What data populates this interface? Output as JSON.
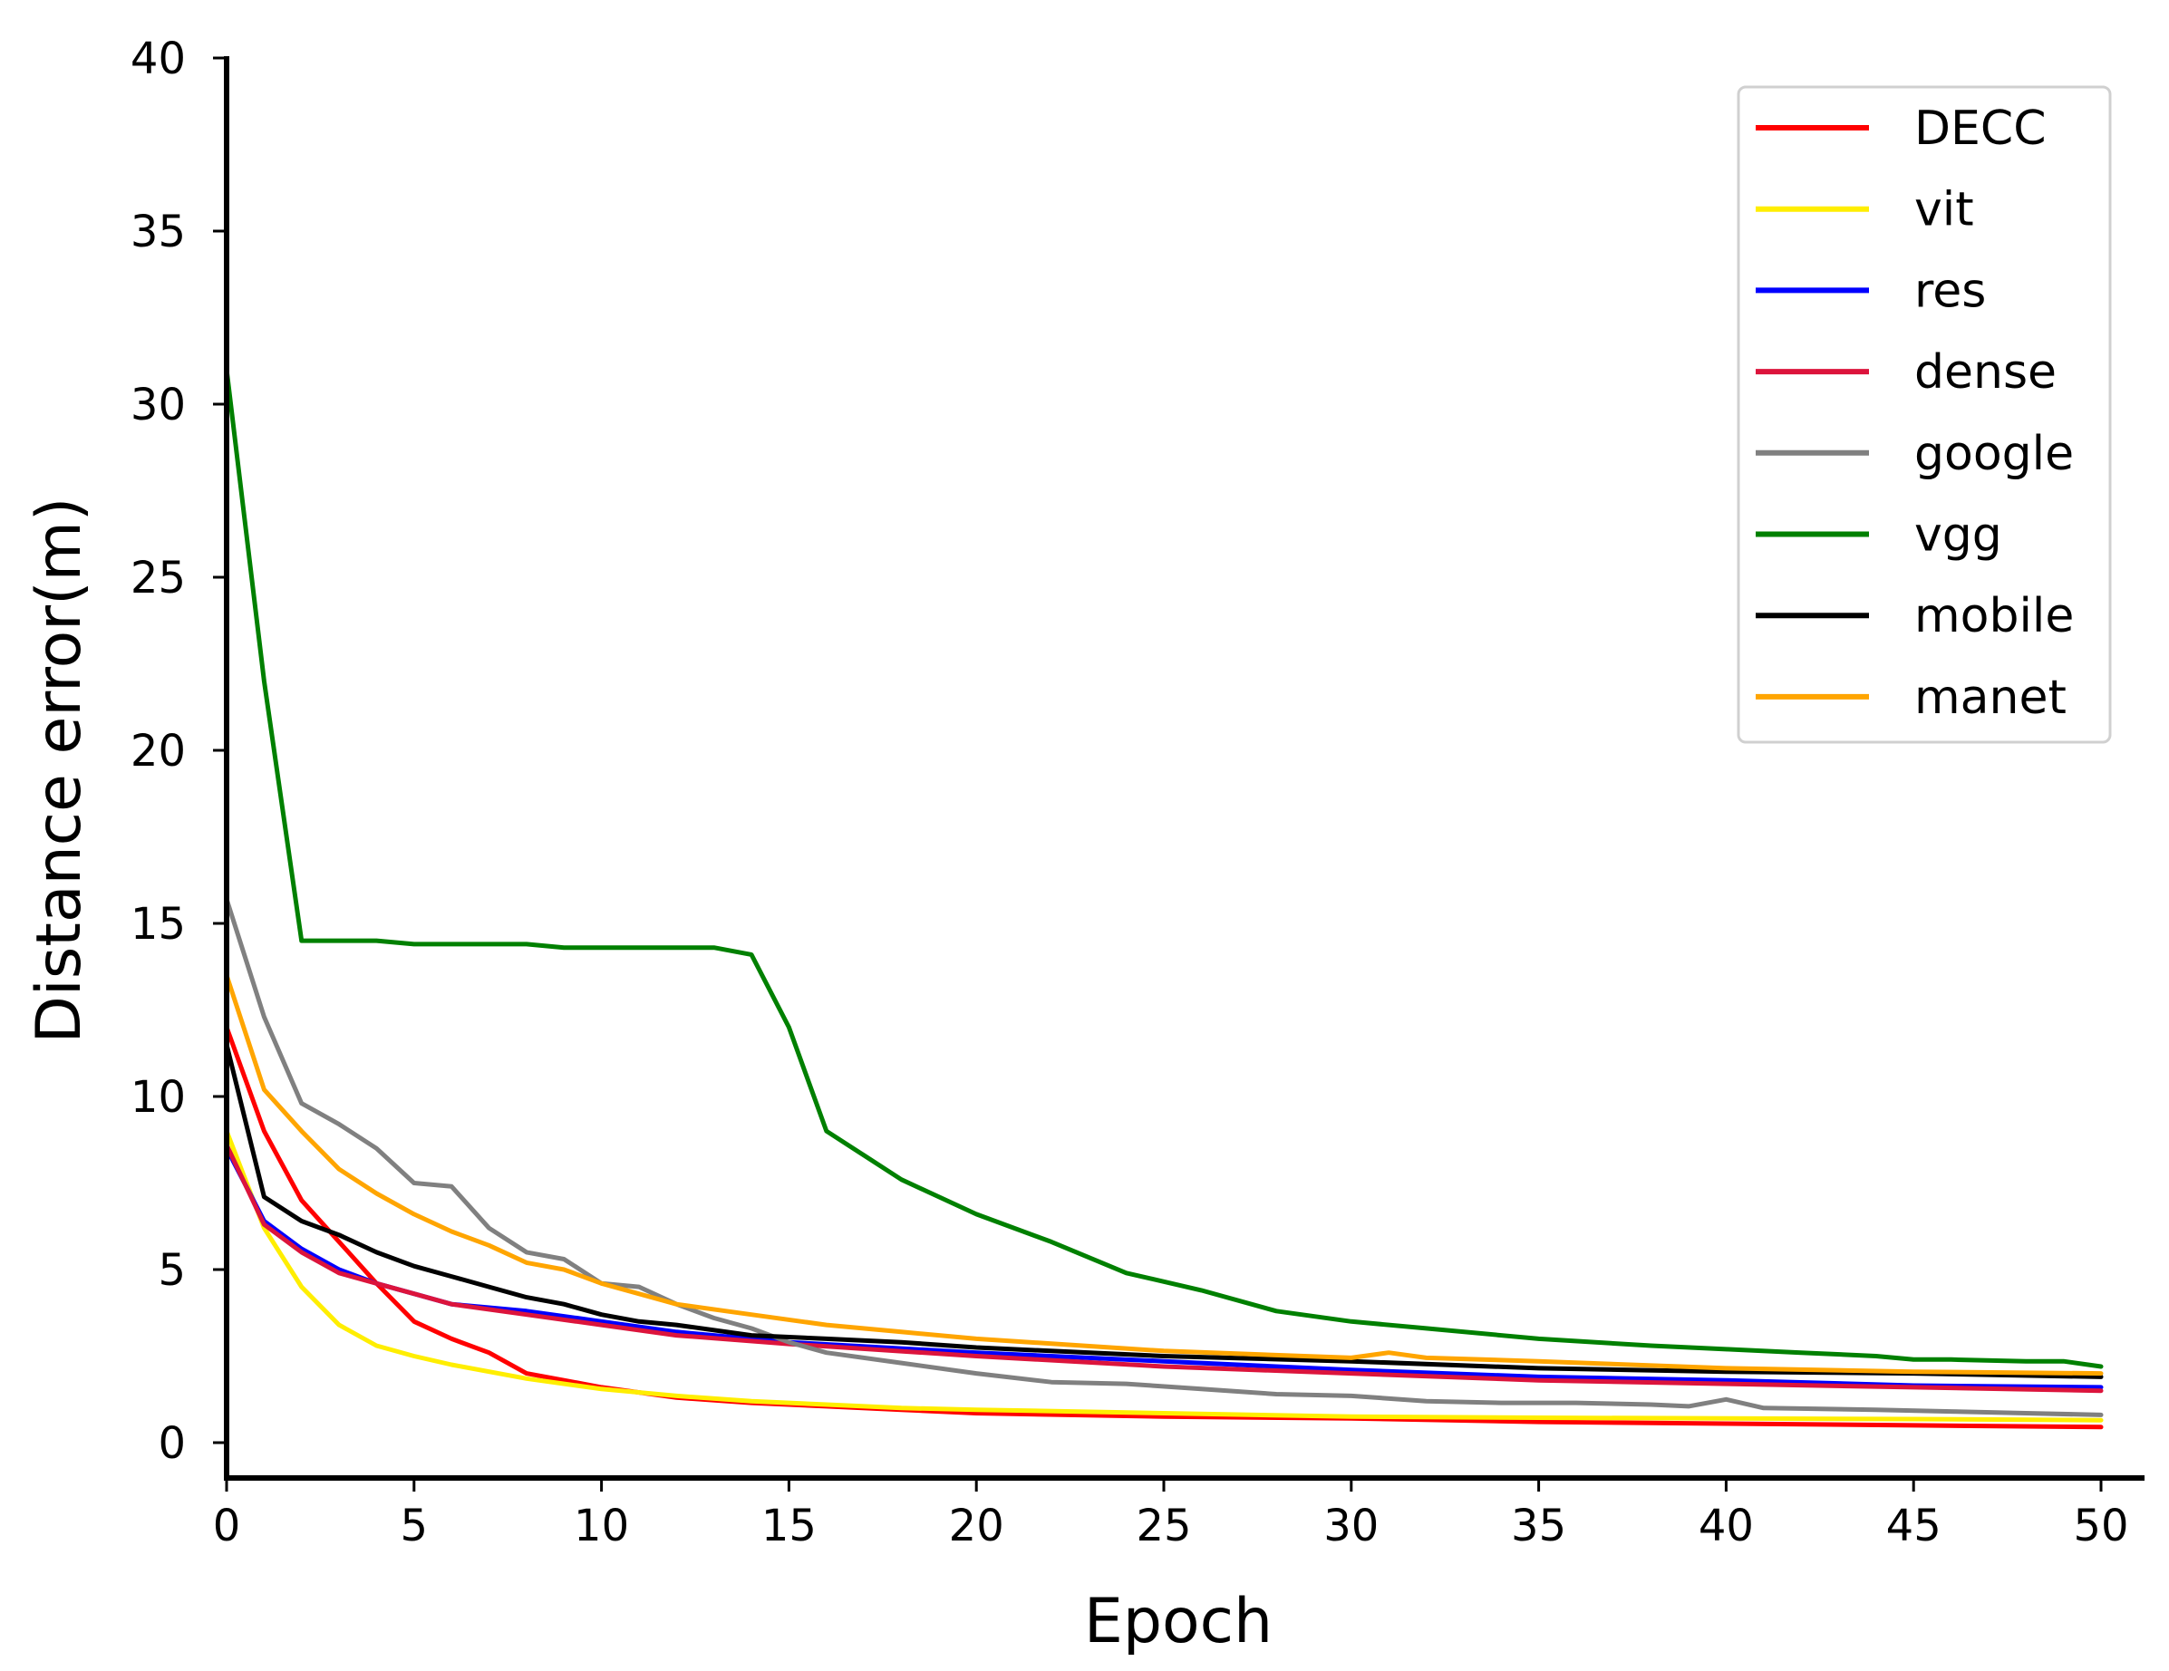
{
  "chart_data": {
    "type": "line",
    "title": "",
    "xlabel": "Epoch",
    "ylabel": "Distance error(m)",
    "xlim": [
      0,
      50
    ],
    "ylim": [
      -1.2,
      40
    ],
    "xticks": [
      0,
      5,
      10,
      15,
      20,
      25,
      30,
      35,
      40,
      45,
      50
    ],
    "yticks": [
      0,
      5,
      10,
      15,
      20,
      25,
      30,
      35,
      40
    ],
    "grid": false,
    "legend_position": "top-right",
    "series": [
      {
        "name": "DECC",
        "color": "#ff0000",
        "x": [
          0,
          1,
          2,
          3,
          4,
          5,
          6,
          7,
          8,
          9,
          10,
          12,
          14,
          16,
          18,
          20,
          25,
          30,
          35,
          40,
          45,
          50
        ],
        "y": [
          12.0,
          9.0,
          7.0,
          5.8,
          4.6,
          3.5,
          3.0,
          2.6,
          2.0,
          1.8,
          1.6,
          1.3,
          1.15,
          1.05,
          0.95,
          0.85,
          0.75,
          0.7,
          0.6,
          0.55,
          0.5,
          0.45
        ]
      },
      {
        "name": "vit",
        "color": "#ffee00",
        "x": [
          0,
          1,
          2,
          3,
          4,
          5,
          6,
          8,
          10,
          12,
          14,
          16,
          18,
          20,
          25,
          30,
          35,
          40,
          45,
          50
        ],
        "y": [
          9.0,
          6.2,
          4.5,
          3.4,
          2.8,
          2.5,
          2.25,
          1.85,
          1.55,
          1.35,
          1.2,
          1.1,
          1.0,
          0.95,
          0.85,
          0.75,
          0.72,
          0.7,
          0.68,
          0.65
        ]
      },
      {
        "name": "res",
        "color": "#0000ff",
        "x": [
          0,
          1,
          2,
          3,
          4,
          5,
          6,
          8,
          10,
          12,
          15,
          20,
          25,
          30,
          35,
          40,
          45,
          50
        ],
        "y": [
          8.5,
          6.4,
          5.6,
          5.0,
          4.6,
          4.3,
          4.0,
          3.8,
          3.5,
          3.2,
          2.9,
          2.6,
          2.35,
          2.1,
          1.9,
          1.8,
          1.65,
          1.6
        ]
      },
      {
        "name": "dense",
        "color": "#dc143c",
        "x": [
          0,
          1,
          2,
          3,
          4,
          5,
          6,
          8,
          10,
          12,
          15,
          20,
          25,
          30,
          35,
          40,
          45,
          50
        ],
        "y": [
          8.6,
          6.3,
          5.5,
          4.9,
          4.6,
          4.3,
          4.0,
          3.7,
          3.4,
          3.1,
          2.85,
          2.5,
          2.2,
          2.0,
          1.8,
          1.7,
          1.6,
          1.5
        ]
      },
      {
        "name": "google",
        "color": "#808080",
        "x": [
          0,
          1,
          2,
          3,
          4,
          5,
          6,
          7,
          8,
          9,
          10,
          11,
          12,
          13,
          14,
          15,
          16,
          18,
          20,
          22,
          24,
          26,
          28,
          30,
          32,
          34,
          36,
          38,
          39,
          40,
          41,
          44,
          46,
          48,
          50
        ],
        "y": [
          15.7,
          12.3,
          9.8,
          9.2,
          8.5,
          7.5,
          7.4,
          6.2,
          5.5,
          5.3,
          4.6,
          4.5,
          4.0,
          3.6,
          3.3,
          2.9,
          2.6,
          2.3,
          2.0,
          1.75,
          1.7,
          1.55,
          1.4,
          1.35,
          1.2,
          1.15,
          1.15,
          1.1,
          1.05,
          1.25,
          1.0,
          0.95,
          0.9,
          0.85,
          0.8
        ]
      },
      {
        "name": "vgg",
        "color": "#008000",
        "x": [
          0,
          1,
          2,
          3,
          4,
          5,
          6,
          7,
          8,
          9,
          10,
          11,
          12,
          13,
          14,
          15,
          16,
          17,
          18,
          20,
          22,
          24,
          26,
          28,
          30,
          32,
          35,
          38,
          40,
          42,
          44,
          45,
          46,
          48,
          49,
          50
        ],
        "y": [
          31.0,
          22.0,
          14.5,
          14.5,
          14.5,
          14.4,
          14.4,
          14.4,
          14.4,
          14.3,
          14.3,
          14.3,
          14.3,
          14.3,
          14.1,
          12.0,
          9.0,
          8.3,
          7.6,
          6.6,
          5.8,
          4.9,
          4.4,
          3.8,
          3.5,
          3.3,
          3.0,
          2.8,
          2.7,
          2.6,
          2.5,
          2.4,
          2.4,
          2.35,
          2.35,
          2.2
        ]
      },
      {
        "name": "mobile",
        "color": "#000000",
        "x": [
          0,
          1,
          2,
          3,
          4,
          5,
          6,
          7,
          8,
          9,
          10,
          11,
          12,
          14,
          16,
          18,
          20,
          25,
          30,
          35,
          40,
          45,
          50
        ],
        "y": [
          11.5,
          7.1,
          6.4,
          6.0,
          5.5,
          5.1,
          4.8,
          4.5,
          4.2,
          4.0,
          3.7,
          3.5,
          3.4,
          3.1,
          3.0,
          2.9,
          2.75,
          2.5,
          2.35,
          2.15,
          2.05,
          2.0,
          1.9
        ]
      },
      {
        "name": "manet",
        "color": "#ffa500",
        "x": [
          0,
          1,
          2,
          3,
          4,
          5,
          6,
          7,
          8,
          9,
          10,
          12,
          14,
          16,
          18,
          20,
          25,
          30,
          31,
          32,
          35,
          40,
          45,
          50
        ],
        "y": [
          13.5,
          10.2,
          9.0,
          7.9,
          7.2,
          6.6,
          6.1,
          5.7,
          5.2,
          5.0,
          4.6,
          4.0,
          3.7,
          3.4,
          3.2,
          3.0,
          2.65,
          2.45,
          2.6,
          2.45,
          2.35,
          2.15,
          2.05,
          2.0
        ]
      }
    ]
  }
}
